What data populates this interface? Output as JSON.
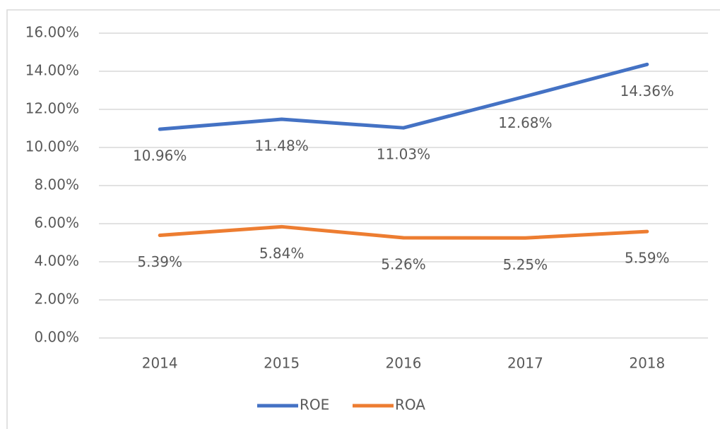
{
  "chart_data": {
    "type": "line",
    "categories": [
      "2014",
      "2015",
      "2016",
      "2017",
      "2018"
    ],
    "series": [
      {
        "name": "ROE",
        "color": "#4472c4",
        "values": [
          10.96,
          11.48,
          11.03,
          12.68,
          14.36
        ],
        "value_labels": [
          "10.96%",
          "11.48%",
          "11.03%",
          "12.68%",
          "14.36%"
        ]
      },
      {
        "name": "ROA",
        "color": "#ed7d31",
        "values": [
          5.39,
          5.84,
          5.26,
          5.25,
          5.59
        ],
        "value_labels": [
          "5.39%",
          "5.84%",
          "5.26%",
          "5.25%",
          "5.59%"
        ]
      }
    ],
    "ylim": [
      0,
      16
    ],
    "yticks": [
      {
        "value": 0,
        "label": "0.00%"
      },
      {
        "value": 2,
        "label": "2.00%"
      },
      {
        "value": 4,
        "label": "4.00%"
      },
      {
        "value": 6,
        "label": "6.00%"
      },
      {
        "value": 8,
        "label": "8.00%"
      },
      {
        "value": 10,
        "label": "10.00%"
      },
      {
        "value": 12,
        "label": "12.00%"
      },
      {
        "value": 14,
        "label": "14.00%"
      },
      {
        "value": 16,
        "label": "16.00%"
      }
    ],
    "grid": true,
    "legend": "bottom"
  }
}
